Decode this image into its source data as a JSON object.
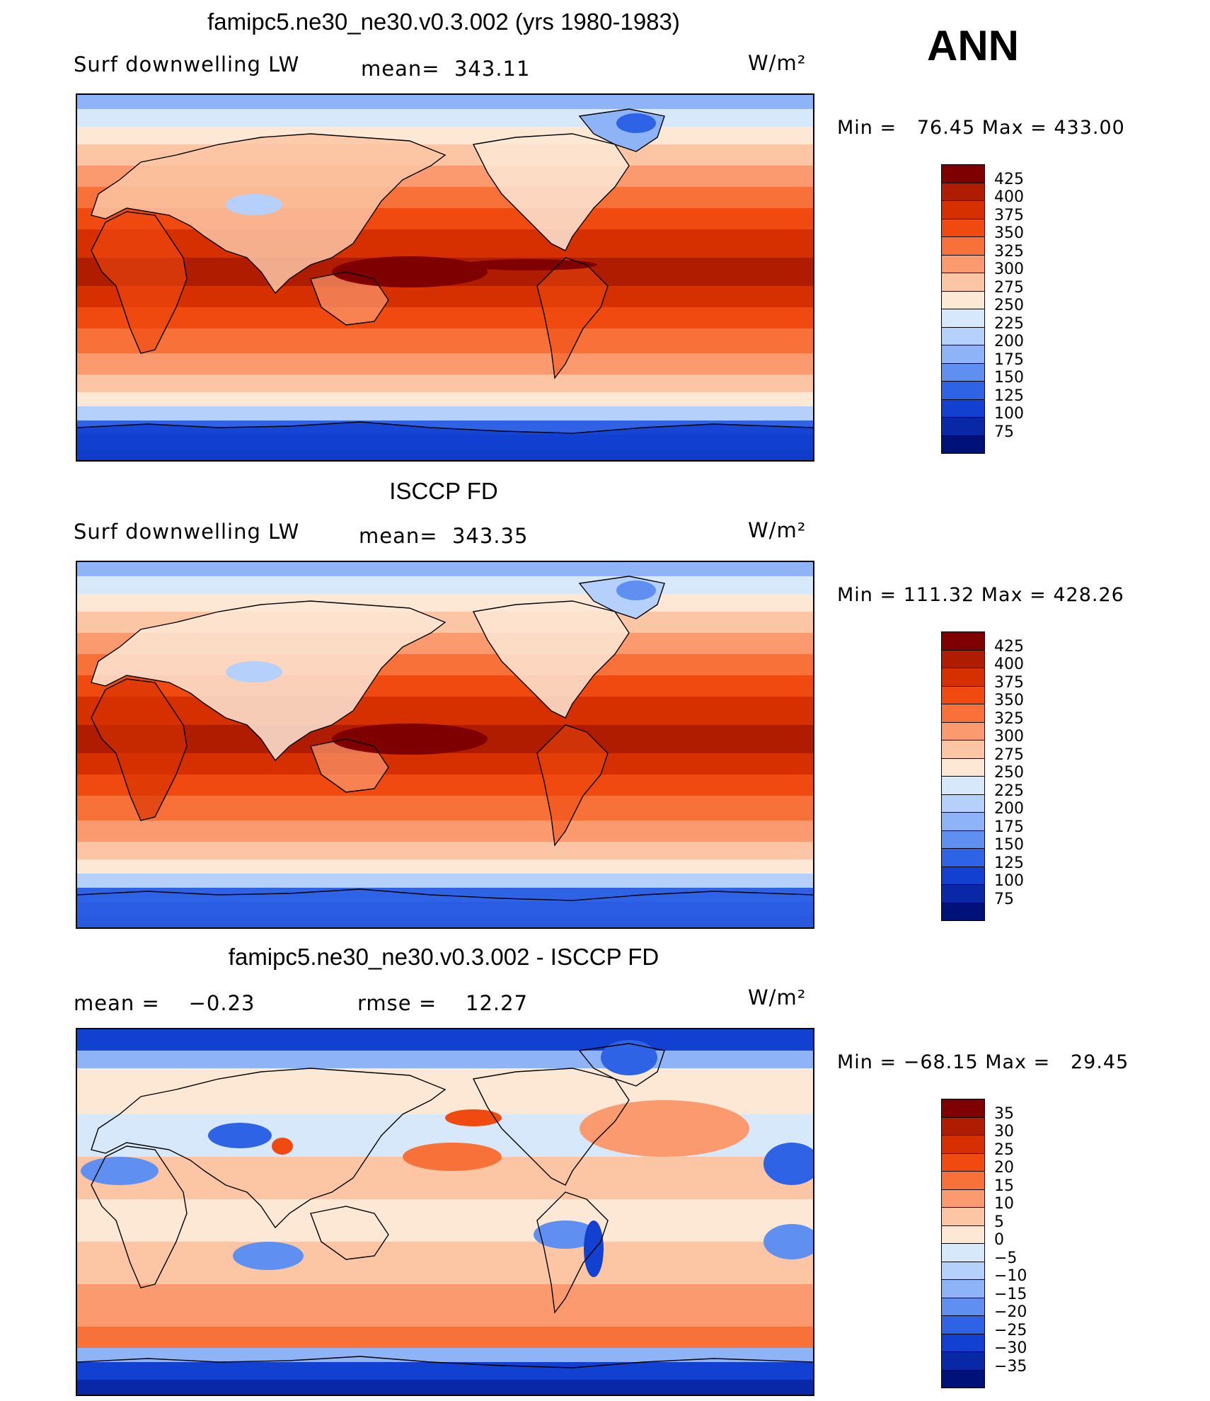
{
  "season": "ANN",
  "panels": [
    {
      "title": "famipc5.ne30_ne30.v0.3.002 (yrs 1980-1983)",
      "left_label": "Surf downwelling LW",
      "center_label": "mean=  343.11",
      "units": "W/m²",
      "min_max": "Min =   76.45 Max = 433.00",
      "levels": [
        "425",
        "400",
        "375",
        "350",
        "325",
        "300",
        "275",
        "250",
        "225",
        "200",
        "175",
        "150",
        "125",
        "100",
        "75"
      ],
      "scale": "abs"
    },
    {
      "title": "ISCCP FD",
      "left_label": "Surf downwelling LW",
      "center_label": "mean=  343.35",
      "units": "W/m²",
      "min_max": "Min = 111.32 Max = 428.26",
      "levels": [
        "425",
        "400",
        "375",
        "350",
        "325",
        "300",
        "275",
        "250",
        "225",
        "200",
        "175",
        "150",
        "125",
        "100",
        "75"
      ],
      "scale": "abs"
    },
    {
      "title": "famipc5.ne30_ne30.v0.3.002 - ISCCP FD",
      "left_label": "mean =    −0.23",
      "center_label": "rmse =    12.27",
      "units": "W/m²",
      "min_max": "Min = −68.15 Max =   29.45",
      "levels": [
        "35",
        "30",
        "25",
        "20",
        "15",
        "10",
        "5",
        "0",
        "−5",
        "−10",
        "−15",
        "−20",
        "−25",
        "−30",
        "−35"
      ],
      "scale": "diff"
    }
  ],
  "colors": {
    "palette": [
      "#7f0000",
      "#b01c00",
      "#d63000",
      "#f04a10",
      "#f77138",
      "#fb9a6e",
      "#fcc6a4",
      "#fde8d6",
      "#d7e8fb",
      "#b5d0fb",
      "#8eb4f7",
      "#5f8ff0",
      "#2f63e6",
      "#1240d0",
      "#0828a8",
      "#00117a"
    ]
  }
}
